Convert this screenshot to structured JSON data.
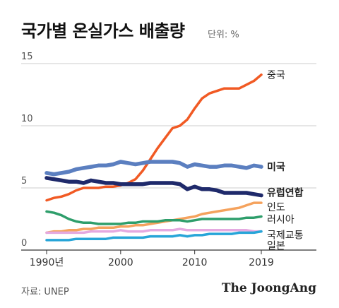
{
  "header": {
    "title": "국가별 온실가스 배출량",
    "unit": "단위: %"
  },
  "footer": {
    "source": "자료: UNEP",
    "brand": "The JoongAng"
  },
  "chart_data": {
    "type": "line",
    "title": "국가별 온실가스 배출량",
    "xlabel": "",
    "ylabel": "",
    "xlim": [
      1990,
      2019
    ],
    "ylim": [
      0,
      15
    ],
    "yticks": [
      "0",
      "5",
      "10",
      "15"
    ],
    "xticks": [
      {
        "value": 1990,
        "label": "1990년"
      },
      {
        "value": 2000,
        "label": "2000"
      },
      {
        "value": 2010,
        "label": "2010"
      },
      {
        "value": 2019,
        "label": "2019"
      }
    ],
    "grid": true,
    "x": [
      1990,
      1991,
      1992,
      1993,
      1994,
      1995,
      1996,
      1997,
      1998,
      1999,
      2000,
      2001,
      2002,
      2003,
      2004,
      2005,
      2006,
      2007,
      2008,
      2009,
      2010,
      2011,
      2012,
      2013,
      2014,
      2015,
      2016,
      2017,
      2018,
      2019
    ],
    "series": [
      {
        "name": "중국",
        "color": "#f15a24",
        "width": 3.5,
        "bold": false,
        "values": [
          4.0,
          4.2,
          4.3,
          4.5,
          4.8,
          5.0,
          5.0,
          5.0,
          5.1,
          5.1,
          5.2,
          5.4,
          5.7,
          6.4,
          7.3,
          8.2,
          9.0,
          9.8,
          10.0,
          10.5,
          11.4,
          12.2,
          12.6,
          12.8,
          13.0,
          13.0,
          13.0,
          13.3,
          13.6,
          14.1
        ]
      },
      {
        "name": "미국",
        "color": "#5b7fc0",
        "width": 5.5,
        "bold": true,
        "values": [
          6.2,
          6.1,
          6.2,
          6.3,
          6.5,
          6.6,
          6.7,
          6.8,
          6.8,
          6.9,
          7.1,
          7.0,
          6.9,
          7.0,
          7.1,
          7.1,
          7.1,
          7.1,
          7.0,
          6.7,
          6.9,
          6.8,
          6.7,
          6.7,
          6.8,
          6.8,
          6.7,
          6.6,
          6.8,
          6.7
        ]
      },
      {
        "name": "유럽연합",
        "color": "#1f2a6b",
        "width": 5.5,
        "bold": true,
        "values": [
          5.8,
          5.7,
          5.6,
          5.5,
          5.5,
          5.4,
          5.6,
          5.5,
          5.4,
          5.4,
          5.3,
          5.3,
          5.3,
          5.3,
          5.4,
          5.4,
          5.4,
          5.4,
          5.3,
          4.9,
          5.1,
          4.9,
          4.9,
          4.8,
          4.6,
          4.6,
          4.6,
          4.6,
          4.5,
          4.4
        ]
      },
      {
        "name": "인도",
        "color": "#f5a25d",
        "width": 3.5,
        "bold": false,
        "values": [
          1.4,
          1.5,
          1.5,
          1.6,
          1.6,
          1.7,
          1.7,
          1.8,
          1.8,
          1.8,
          1.9,
          1.9,
          2.0,
          2.0,
          2.1,
          2.2,
          2.3,
          2.4,
          2.5,
          2.6,
          2.7,
          2.9,
          3.0,
          3.1,
          3.2,
          3.3,
          3.4,
          3.6,
          3.8,
          3.8
        ]
      },
      {
        "name": "러시아",
        "color": "#2e9e6b",
        "width": 3.5,
        "bold": false,
        "values": [
          3.1,
          3.0,
          2.8,
          2.5,
          2.3,
          2.2,
          2.2,
          2.1,
          2.1,
          2.1,
          2.1,
          2.2,
          2.2,
          2.3,
          2.3,
          2.3,
          2.4,
          2.4,
          2.4,
          2.3,
          2.4,
          2.5,
          2.5,
          2.5,
          2.5,
          2.5,
          2.5,
          2.6,
          2.6,
          2.7
        ]
      },
      {
        "name": "국제교통",
        "color": "#e4a9e0",
        "width": 3.5,
        "bold": false,
        "values": [
          1.4,
          1.4,
          1.4,
          1.4,
          1.4,
          1.4,
          1.5,
          1.5,
          1.5,
          1.5,
          1.6,
          1.5,
          1.5,
          1.5,
          1.6,
          1.6,
          1.6,
          1.6,
          1.7,
          1.6,
          1.6,
          1.6,
          1.6,
          1.6,
          1.6,
          1.6,
          1.6,
          1.6,
          1.5,
          1.5
        ]
      },
      {
        "name": "일본",
        "color": "#27a5d8",
        "width": 3.5,
        "bold": false,
        "values": [
          0.8,
          0.8,
          0.8,
          0.8,
          0.9,
          0.9,
          0.9,
          0.9,
          0.9,
          1.0,
          1.0,
          1.0,
          1.0,
          1.0,
          1.1,
          1.1,
          1.1,
          1.1,
          1.2,
          1.1,
          1.2,
          1.2,
          1.3,
          1.3,
          1.3,
          1.3,
          1.4,
          1.4,
          1.4,
          1.5
        ]
      }
    ]
  }
}
